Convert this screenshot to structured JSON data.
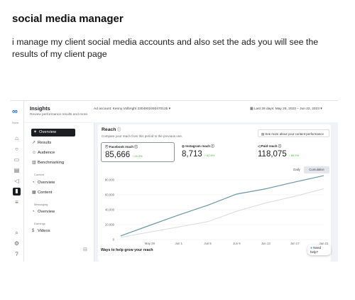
{
  "post": {
    "title": "social media manager",
    "description": "i manage my client social media accounts and also set the ads you will see the results of my client page"
  },
  "app": {
    "header_title": "Insights",
    "header_subtitle": "Review performance results and more.",
    "ad_account": "Ad account: Kenny Volbright 230490249247012b",
    "date_range": "Last 28 days: May 26, 2023 – Jun 22, 2023",
    "rail_label": "Home"
  },
  "nav": {
    "overview": "Overview",
    "results": "Results",
    "audience": "Audience",
    "benchmarking": "Benchmarking",
    "group_content": "Content",
    "content_overview": "Overview",
    "content": "Content",
    "group_messaging": "Messaging",
    "messaging_overview": "Overview",
    "group_earnings": "Earnings",
    "videos": "Videos"
  },
  "reach": {
    "heading": "Reach",
    "subheading": "Compare your reach from this period to the previous one.",
    "see_more": "See more about your content performance",
    "cards": [
      {
        "label": "Facebook reach",
        "value": "85,666",
        "change": "24.3%"
      },
      {
        "label": "Instagram reach",
        "value": "8,713",
        "change": "42.6%"
      },
      {
        "label": "Paid reach",
        "value": "118,075",
        "change": "89.9%"
      }
    ],
    "toggle_daily": "Daily",
    "toggle_cumulative": "Cumulative",
    "grow_heading": "Ways to help grow your reach",
    "help": "Need help?"
  },
  "colors": {
    "series_main": "#6c98a3",
    "series_prev": "#d8dadf",
    "accent": "#1c1e21"
  },
  "chart_data": {
    "type": "line",
    "x": [
      "May 26",
      "May 29",
      "Jun 1",
      "Jun 5",
      "Jun 9",
      "Jun 13",
      "Jun 17",
      "Jun 21"
    ],
    "xticks": [
      "May 29",
      "Jun 1",
      "Jun 5",
      "Jun 9",
      "Jun 13",
      "Jun 17",
      "Jun 21"
    ],
    "yticks": [
      "0",
      "20,000",
      "40,000",
      "60,000",
      "80,000"
    ],
    "ylim": [
      0,
      80000
    ],
    "series": [
      {
        "values": [
          5000,
          19000,
          33000,
          46000,
          61000,
          68000,
          77000,
          85666
        ]
      },
      {
        "values": [
          3000,
          10000,
          17000,
          24000,
          38000,
          49000,
          58000,
          68000
        ]
      }
    ]
  }
}
